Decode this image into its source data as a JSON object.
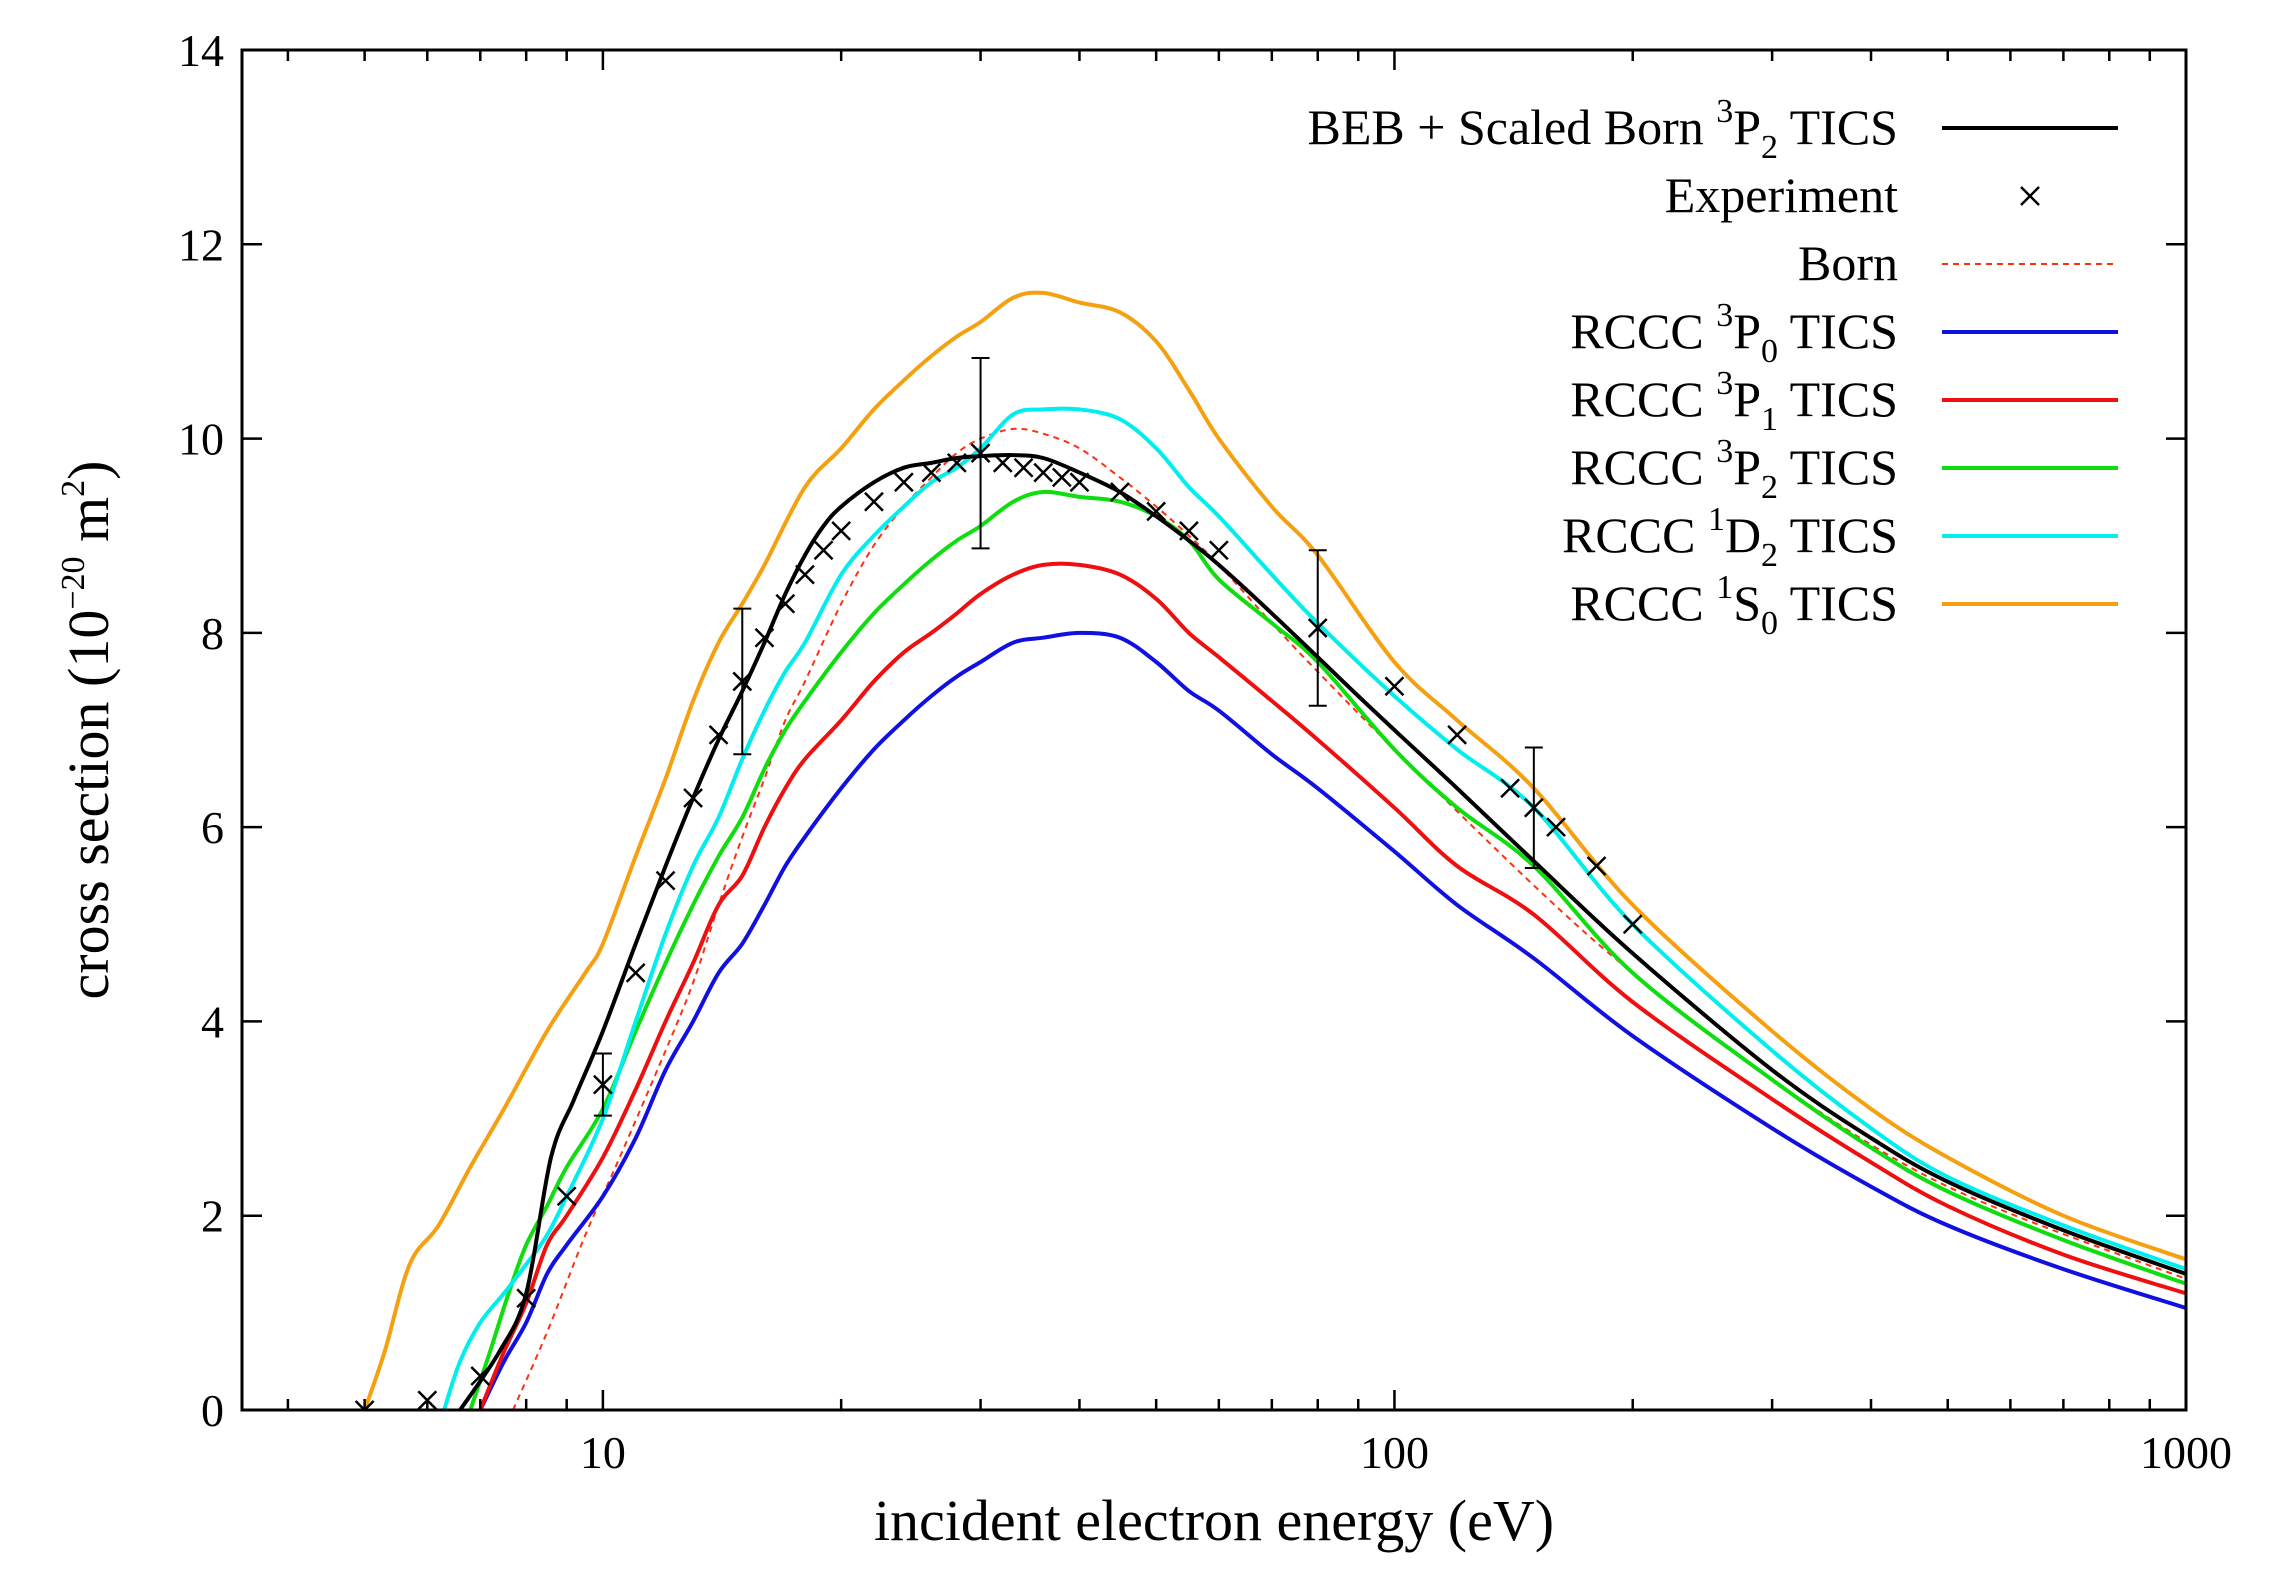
{
  "chart_data": {
    "type": "line",
    "xlabel": "incident electron energy (eV)",
    "ylabel": {
      "main": "cross section (10",
      "exp": "−20",
      "unit": " m",
      "unit_exp": "2",
      "close": ")"
    },
    "xscale": "log",
    "xlim": [
      3.5,
      1000
    ],
    "ylim": [
      0,
      14
    ],
    "xticks": [
      {
        "value": 10,
        "label": "10"
      },
      {
        "value": 100,
        "label": "100"
      },
      {
        "value": 1000,
        "label": "1000"
      }
    ],
    "yticks": [
      {
        "value": 0,
        "label": "0"
      },
      {
        "value": 2,
        "label": "2"
      },
      {
        "value": 4,
        "label": "4"
      },
      {
        "value": 6,
        "label": "6"
      },
      {
        "value": 8,
        "label": "8"
      },
      {
        "value": 10,
        "label": "10"
      },
      {
        "value": 12,
        "label": "12"
      },
      {
        "value": 14,
        "label": "14"
      }
    ],
    "grid": false,
    "legend_position": "top-right",
    "series": [
      {
        "key": "beb",
        "style": "solid",
        "color": "#000000",
        "label": {
          "pre": "BEB + Scaled Born ",
          "sup": "3",
          "base": "P",
          "sub": "2",
          "post": " TICS"
        },
        "x": [
          6.6,
          7.4,
          8.0,
          8.6,
          9.2,
          10.0,
          11,
          12,
          13,
          14,
          15,
          16,
          17,
          18,
          19,
          20,
          22,
          24,
          26,
          28,
          30,
          33,
          36,
          40,
          45,
          50,
          55,
          60,
          70,
          80,
          90,
          100,
          120,
          150,
          200,
          300,
          400,
          500,
          700,
          1000
        ],
        "y": [
          0.0,
          0.6,
          1.2,
          2.6,
          3.2,
          3.9,
          4.8,
          5.6,
          6.3,
          6.9,
          7.4,
          7.9,
          8.4,
          8.8,
          9.1,
          9.3,
          9.55,
          9.7,
          9.75,
          9.8,
          9.82,
          9.83,
          9.8,
          9.65,
          9.45,
          9.2,
          8.95,
          8.7,
          8.2,
          7.75,
          7.35,
          7.0,
          6.4,
          5.65,
          4.7,
          3.5,
          2.8,
          2.35,
          1.85,
          1.4
        ]
      },
      {
        "key": "experiment",
        "style": "cross",
        "color": "#000000",
        "label": {
          "pre": "Experiment",
          "sup": "",
          "base": "",
          "sub": "",
          "post": ""
        },
        "x": [
          5.0,
          6.0,
          7.0,
          8.0,
          9.0,
          10,
          11,
          12,
          13,
          14,
          15,
          16,
          17,
          18,
          19,
          20,
          22,
          24,
          26,
          28,
          30,
          32,
          34,
          36,
          38,
          40,
          45,
          50,
          55,
          60,
          80,
          100,
          120,
          140,
          150,
          160,
          180,
          200
        ],
        "y": [
          0.0,
          0.1,
          0.35,
          1.15,
          2.2,
          3.35,
          4.5,
          5.45,
          6.3,
          6.95,
          7.5,
          7.95,
          8.3,
          8.6,
          8.85,
          9.05,
          9.35,
          9.55,
          9.65,
          9.75,
          9.85,
          9.75,
          9.7,
          9.65,
          9.6,
          9.55,
          9.45,
          9.25,
          9.05,
          8.85,
          8.05,
          7.45,
          6.95,
          6.4,
          6.2,
          6.0,
          5.6,
          5.0
        ],
        "yerr": [
          0,
          0,
          0,
          0,
          0,
          0.32,
          0,
          0,
          0,
          0,
          0.75,
          0,
          0,
          0,
          0,
          0,
          0,
          0,
          0,
          0,
          0.98,
          0,
          0,
          0,
          0,
          0,
          0,
          0,
          0,
          0,
          0.8,
          0,
          0,
          0,
          0.62,
          0,
          0,
          0
        ]
      },
      {
        "key": "born",
        "style": "dotted",
        "color": "#ff3010",
        "label": {
          "pre": "Born",
          "sup": "",
          "base": "",
          "sub": "",
          "post": ""
        },
        "x": [
          7.7,
          8.5,
          9.5,
          10.5,
          12,
          13,
          14,
          15,
          16,
          17,
          18,
          20,
          22,
          24,
          26,
          28,
          30,
          33,
          36,
          40,
          45,
          50,
          55,
          60,
          70,
          80,
          100,
          150,
          200,
          300,
          500,
          1000
        ],
        "y": [
          0.0,
          0.8,
          1.8,
          2.6,
          3.7,
          4.4,
          5.2,
          5.9,
          6.5,
          7.1,
          7.5,
          8.3,
          8.9,
          9.3,
          9.6,
          9.85,
          10.0,
          10.1,
          10.05,
          9.9,
          9.6,
          9.3,
          9.0,
          8.7,
          8.1,
          7.6,
          6.8,
          5.4,
          4.5,
          3.4,
          2.3,
          1.35
        ]
      },
      {
        "key": "p0",
        "style": "solid",
        "color": "#1010e0",
        "label": {
          "pre": "RCCC ",
          "sup": "3",
          "base": "P",
          "sub": "0",
          "post": " TICS"
        },
        "x": [
          7.0,
          7.5,
          8,
          8.5,
          9,
          10,
          11,
          12,
          13,
          14,
          15,
          16,
          17,
          18,
          20,
          22,
          24,
          26,
          28,
          30,
          33,
          36,
          40,
          45,
          50,
          55,
          60,
          70,
          80,
          100,
          120,
          150,
          200,
          300,
          400,
          500,
          700,
          1000
        ],
        "y": [
          0.0,
          0.5,
          0.9,
          1.4,
          1.7,
          2.2,
          2.8,
          3.5,
          4.0,
          4.5,
          4.8,
          5.2,
          5.6,
          5.9,
          6.4,
          6.8,
          7.1,
          7.35,
          7.55,
          7.7,
          7.9,
          7.95,
          8.0,
          7.95,
          7.7,
          7.4,
          7.2,
          6.75,
          6.4,
          5.75,
          5.2,
          4.65,
          3.85,
          2.9,
          2.3,
          1.9,
          1.45,
          1.05
        ]
      },
      {
        "key": "p1",
        "style": "solid",
        "color": "#ee1010",
        "label": {
          "pre": "RCCC ",
          "sup": "3",
          "base": "P",
          "sub": "1",
          "post": " TICS"
        },
        "x": [
          7.0,
          7.5,
          8,
          8.5,
          9,
          10,
          11,
          12,
          13,
          14,
          15,
          16,
          17,
          18,
          20,
          22,
          24,
          26,
          28,
          30,
          33,
          36,
          40,
          45,
          50,
          55,
          60,
          70,
          80,
          100,
          120,
          150,
          200,
          300,
          400,
          500,
          700,
          1000
        ],
        "y": [
          0.0,
          0.6,
          1.1,
          1.7,
          2.0,
          2.6,
          3.3,
          4.0,
          4.6,
          5.2,
          5.5,
          6.0,
          6.4,
          6.7,
          7.1,
          7.5,
          7.8,
          8.0,
          8.2,
          8.4,
          8.6,
          8.7,
          8.7,
          8.6,
          8.35,
          8.0,
          7.75,
          7.3,
          6.9,
          6.2,
          5.6,
          5.1,
          4.2,
          3.2,
          2.55,
          2.1,
          1.6,
          1.2
        ]
      },
      {
        "key": "p2",
        "style": "solid",
        "color": "#10dd10",
        "label": {
          "pre": "RCCC ",
          "sup": "3",
          "base": "P",
          "sub": "2",
          "post": " TICS"
        },
        "x": [
          6.8,
          7.2,
          7.6,
          8,
          8.5,
          9,
          10,
          11,
          12,
          13,
          14,
          15,
          16,
          17,
          18,
          20,
          22,
          24,
          26,
          28,
          30,
          33,
          36,
          40,
          45,
          50,
          55,
          60,
          70,
          80,
          100,
          120,
          150,
          200,
          300,
          400,
          500,
          700,
          1000
        ],
        "y": [
          0.0,
          0.6,
          1.2,
          1.7,
          2.1,
          2.5,
          3.1,
          3.9,
          4.6,
          5.2,
          5.7,
          6.1,
          6.6,
          7.0,
          7.3,
          7.8,
          8.2,
          8.5,
          8.75,
          8.95,
          9.1,
          9.35,
          9.45,
          9.4,
          9.35,
          9.2,
          8.95,
          8.55,
          8.1,
          7.7,
          6.8,
          6.2,
          5.6,
          4.5,
          3.4,
          2.7,
          2.25,
          1.75,
          1.3
        ]
      },
      {
        "key": "d2",
        "style": "solid",
        "color": "#00eeee",
        "label": {
          "pre": "RCCC ",
          "sup": "1",
          "base": "D",
          "sub": "2",
          "post": " TICS"
        },
        "x": [
          6.3,
          6.6,
          7.0,
          7.5,
          8,
          8.5,
          9,
          10,
          11,
          12,
          13,
          14,
          15,
          16,
          17,
          18,
          20,
          22,
          24,
          26,
          28,
          30,
          33,
          36,
          40,
          45,
          50,
          55,
          60,
          70,
          80,
          100,
          120,
          150,
          200,
          300,
          400,
          500,
          700,
          1000
        ],
        "y": [
          0.0,
          0.5,
          0.9,
          1.2,
          1.5,
          1.8,
          2.2,
          3.0,
          4.0,
          4.9,
          5.6,
          6.1,
          6.7,
          7.2,
          7.6,
          7.9,
          8.6,
          9.0,
          9.3,
          9.55,
          9.7,
          9.9,
          10.25,
          10.3,
          10.3,
          10.2,
          9.9,
          9.5,
          9.2,
          8.6,
          8.1,
          7.35,
          6.8,
          6.2,
          5.0,
          3.7,
          2.9,
          2.4,
          1.9,
          1.45
        ]
      },
      {
        "key": "s0",
        "style": "solid",
        "color": "#f5a010",
        "label": {
          "pre": "RCCC ",
          "sup": "1",
          "base": "S",
          "sub": "0",
          "post": " TICS"
        },
        "x": [
          5.0,
          5.3,
          5.7,
          6.2,
          6.8,
          7.5,
          8.5,
          9.5,
          10,
          11,
          12,
          13,
          14,
          15,
          16,
          18,
          20,
          22,
          24,
          26,
          28,
          30,
          33,
          36,
          40,
          45,
          50,
          55,
          60,
          70,
          80,
          100,
          120,
          150,
          200,
          300,
          400,
          500,
          700,
          1000
        ],
        "y": [
          0.0,
          0.6,
          1.5,
          1.9,
          2.5,
          3.1,
          3.9,
          4.5,
          4.8,
          5.7,
          6.5,
          7.3,
          7.9,
          8.3,
          8.7,
          9.5,
          9.9,
          10.3,
          10.6,
          10.85,
          11.05,
          11.2,
          11.45,
          11.5,
          11.4,
          11.3,
          11.0,
          10.5,
          10.0,
          9.3,
          8.8,
          7.7,
          7.1,
          6.4,
          5.2,
          3.9,
          3.1,
          2.6,
          2.0,
          1.55
        ]
      }
    ]
  }
}
